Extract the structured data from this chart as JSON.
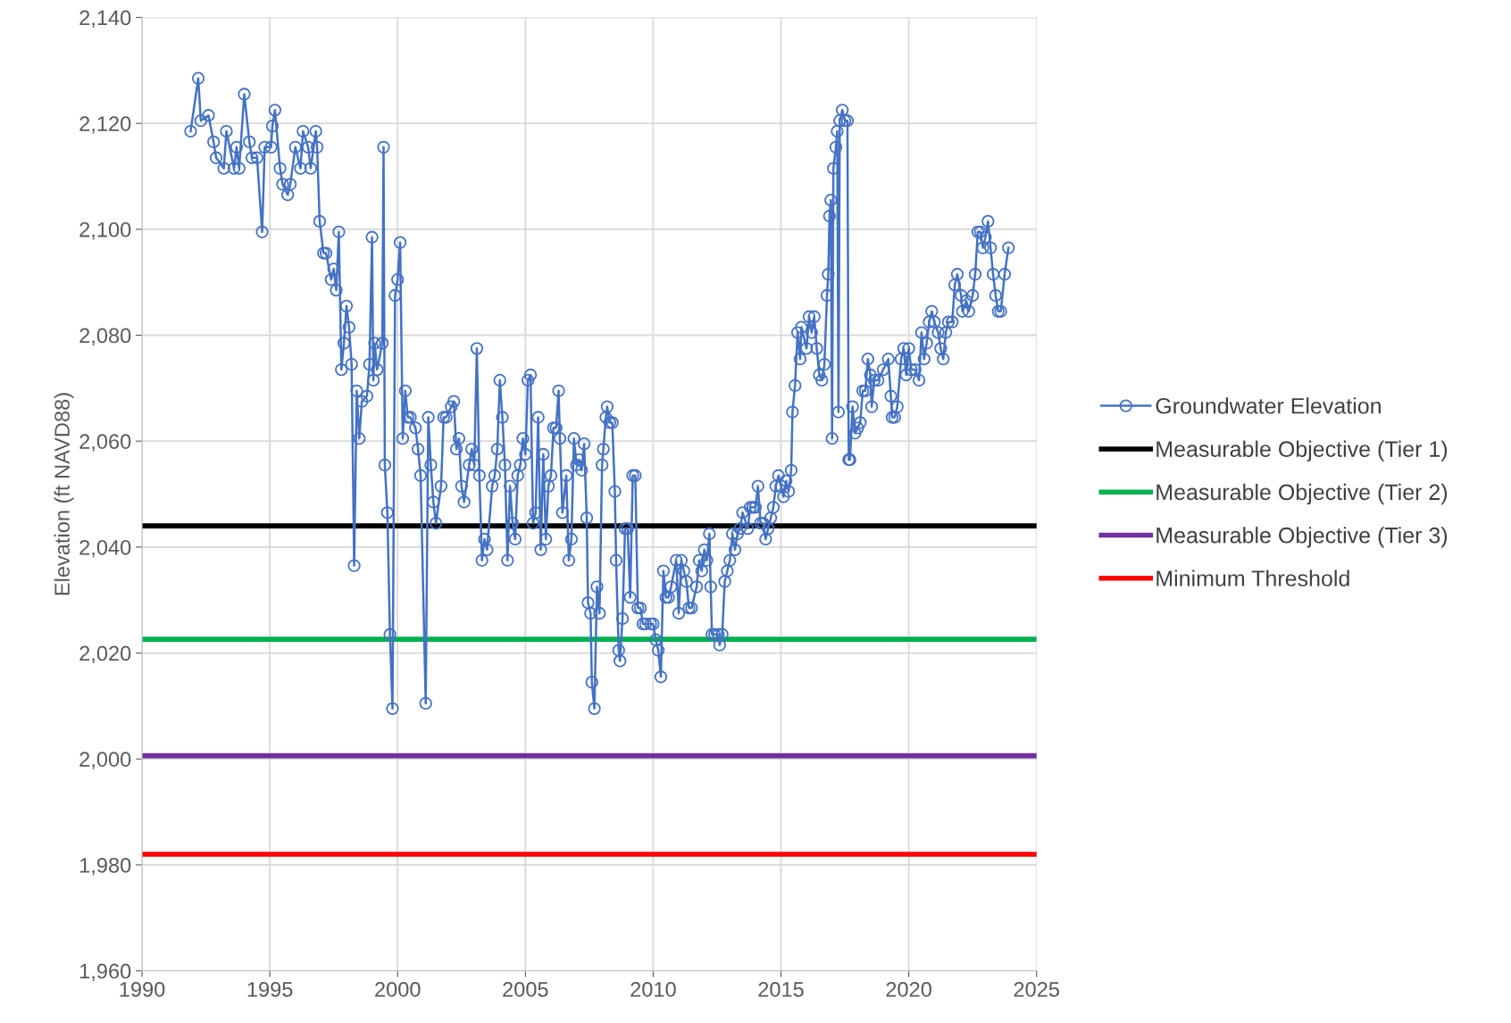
{
  "chart_data": {
    "type": "line",
    "ylabel": "Elevation (ft NAVD88)",
    "xlim": [
      1990,
      2025
    ],
    "xticks": [
      1990,
      1995,
      2000,
      2005,
      2010,
      2015,
      2020,
      2025
    ],
    "ylim": [
      1960,
      2140
    ],
    "yticks": [
      {
        "value": 1960,
        "label": "1,960"
      },
      {
        "value": 1980,
        "label": "1,980"
      },
      {
        "value": 2000,
        "label": "2,000"
      },
      {
        "value": 2020,
        "label": "2,020"
      },
      {
        "value": 2040,
        "label": "2,040"
      },
      {
        "value": 2060,
        "label": "2,060"
      },
      {
        "value": 2080,
        "label": "2,080"
      },
      {
        "value": 2100,
        "label": "2,100"
      },
      {
        "value": 2120,
        "label": "2,120"
      },
      {
        "value": 2140,
        "label": "2,140"
      }
    ],
    "grid": true,
    "legend": "right",
    "marker": "circle",
    "line_style": "solid",
    "series": [
      {
        "name": "Groundwater Elevation",
        "color": "#4472c4",
        "x": [
          1991.9,
          1992.2,
          1992.3,
          1992.6,
          1992.8,
          1992.9,
          1993.2,
          1993.3,
          1993.6,
          1993.7,
          1993.8,
          1994.0,
          1994.2,
          1994.3,
          1994.5,
          1994.7,
          1994.8,
          1995.05,
          1995.1,
          1995.2,
          1995.4,
          1995.5,
          1995.7,
          1995.8,
          1996.0,
          1996.2,
          1996.3,
          1996.5,
          1996.6,
          1996.8,
          1996.85,
          1996.95,
          1997.1,
          1997.2,
          1997.4,
          1997.5,
          1997.6,
          1997.7,
          1997.8,
          1997.9,
          1998.0,
          1998.1,
          1998.2,
          1998.3,
          1998.4,
          1998.5,
          1998.6,
          1998.8,
          1998.9,
          1999.0,
          1999.05,
          1999.1,
          1999.2,
          1999.4,
          1999.45,
          1999.5,
          1999.6,
          1999.7,
          1999.8,
          1999.9,
          2000.0,
          2000.1,
          2000.2,
          2000.3,
          2000.4,
          2000.5,
          2000.7,
          2000.8,
          2000.9,
          2001.1,
          2001.2,
          2001.3,
          2001.4,
          2001.5,
          2001.7,
          2001.8,
          2001.9,
          2002.1,
          2002.2,
          2002.3,
          2002.4,
          2002.5,
          2002.6,
          2002.8,
          2002.9,
          2003.0,
          2003.1,
          2003.2,
          2003.3,
          2003.4,
          2003.5,
          2003.7,
          2003.8,
          2003.9,
          2004.0,
          2004.1,
          2004.2,
          2004.3,
          2004.4,
          2004.5,
          2004.6,
          2004.7,
          2004.8,
          2004.9,
          2005.0,
          2005.1,
          2005.2,
          2005.3,
          2005.4,
          2005.5,
          2005.6,
          2005.7,
          2005.8,
          2005.9,
          2006.0,
          2006.1,
          2006.2,
          2006.3,
          2006.35,
          2006.45,
          2006.6,
          2006.7,
          2006.8,
          2006.9,
          2007.0,
          2007.1,
          2007.2,
          2007.3,
          2007.4,
          2007.45,
          2007.55,
          2007.6,
          2007.7,
          2007.8,
          2007.9,
          2008.0,
          2008.05,
          2008.15,
          2008.2,
          2008.3,
          2008.4,
          2008.5,
          2008.55,
          2008.65,
          2008.7,
          2008.8,
          2008.9,
          2009.0,
          2009.1,
          2009.2,
          2009.3,
          2009.4,
          2009.5,
          2009.6,
          2009.7,
          2009.9,
          2010.0,
          2010.1,
          2010.2,
          2010.3,
          2010.4,
          2010.5,
          2010.6,
          2010.7,
          2010.9,
          2011.0,
          2011.1,
          2011.2,
          2011.3,
          2011.4,
          2011.5,
          2011.7,
          2011.8,
          2011.9,
          2012.0,
          2012.1,
          2012.2,
          2012.25,
          2012.3,
          2012.4,
          2012.55,
          2012.6,
          2012.7,
          2012.8,
          2012.9,
          2013.0,
          2013.1,
          2013.2,
          2013.3,
          2013.4,
          2013.5,
          2013.7,
          2013.8,
          2013.9,
          2014.0,
          2014.1,
          2014.2,
          2014.3,
          2014.4,
          2014.5,
          2014.6,
          2014.7,
          2014.8,
          2014.9,
          2015.0,
          2015.1,
          2015.2,
          2015.3,
          2015.4,
          2015.45,
          2015.55,
          2015.65,
          2015.75,
          2015.8,
          2016.0,
          2016.1,
          2016.2,
          2016.3,
          2016.4,
          2016.5,
          2016.6,
          2016.7,
          2016.8,
          2016.85,
          2016.9,
          2016.95,
          2017.0,
          2017.05,
          2017.15,
          2017.2,
          2017.25,
          2017.3,
          2017.4,
          2017.5,
          2017.6,
          2017.65,
          2017.7,
          2017.8,
          2017.9,
          2018.0,
          2018.1,
          2018.2,
          2018.3,
          2018.4,
          2018.5,
          2018.55,
          2018.65,
          2018.8,
          2019.0,
          2019.2,
          2019.3,
          2019.35,
          2019.45,
          2019.55,
          2019.7,
          2019.8,
          2019.9,
          2020.0,
          2020.1,
          2020.25,
          2020.4,
          2020.5,
          2020.6,
          2020.7,
          2020.8,
          2020.9,
          2021.0,
          2021.15,
          2021.25,
          2021.35,
          2021.45,
          2021.55,
          2021.7,
          2021.8,
          2021.9,
          2022.05,
          2022.1,
          2022.25,
          2022.35,
          2022.5,
          2022.6,
          2022.7,
          2022.8,
          2022.9,
          2023.0,
          2023.1,
          2023.2,
          2023.3,
          2023.4,
          2023.5,
          2023.6,
          2023.75,
          2023.9
        ],
        "values": [
          2118.5,
          2128.5,
          2120.5,
          2121.5,
          2116.5,
          2113.5,
          2111.5,
          2118.5,
          2111.5,
          2115.5,
          2111.5,
          2125.5,
          2116.5,
          2113.5,
          2113.5,
          2099.5,
          2115.5,
          2115.5,
          2119.5,
          2122.5,
          2111.5,
          2108.5,
          2106.5,
          2108.5,
          2115.5,
          2111.5,
          2118.5,
          2115.5,
          2111.5,
          2118.5,
          2115.5,
          2101.5,
          2095.5,
          2095.5,
          2090.5,
          2092.5,
          2088.5,
          2099.5,
          2073.5,
          2078.5,
          2085.5,
          2081.5,
          2074.5,
          2036.5,
          2069.5,
          2060.5,
          2067.5,
          2068.5,
          2074.5,
          2098.5,
          2071.5,
          2078.5,
          2073.5,
          2078.5,
          2115.5,
          2055.5,
          2046.5,
          2023.5,
          2009.5,
          2087.5,
          2090.5,
          2097.5,
          2060.5,
          2069.5,
          2064.5,
          2064.5,
          2062.5,
          2058.5,
          2053.5,
          2010.5,
          2064.5,
          2055.5,
          2048.5,
          2044.5,
          2051.5,
          2064.5,
          2064.5,
          2066.5,
          2067.5,
          2058.5,
          2060.5,
          2051.5,
          2048.5,
          2055.5,
          2058.5,
          2055.5,
          2077.5,
          2053.5,
          2037.5,
          2041.5,
          2039.5,
          2051.5,
          2053.5,
          2058.5,
          2071.5,
          2064.5,
          2055.5,
          2037.5,
          2051.5,
          2044.5,
          2041.5,
          2053.5,
          2055.5,
          2060.5,
          2057.5,
          2071.5,
          2072.5,
          2044.5,
          2046.5,
          2064.5,
          2039.5,
          2057.5,
          2041.5,
          2051.5,
          2053.5,
          2062.5,
          2062.5,
          2069.5,
          2060.5,
          2046.5,
          2053.5,
          2037.5,
          2041.5,
          2060.5,
          2055.5,
          2056.5,
          2054.5,
          2059.5,
          2045.5,
          2029.5,
          2027.5,
          2014.5,
          2009.5,
          2032.5,
          2027.5,
          2055.5,
          2058.5,
          2064.5,
          2066.5,
          2063.5,
          2063.5,
          2050.5,
          2037.5,
          2020.5,
          2018.5,
          2026.5,
          2043.5,
          2043.5,
          2030.5,
          2053.5,
          2053.5,
          2028.5,
          2028.5,
          2025.5,
          2025.5,
          2025.5,
          2025.5,
          2022.5,
          2020.5,
          2015.5,
          2035.5,
          2030.5,
          2030.5,
          2032.5,
          2037.5,
          2027.5,
          2037.5,
          2035.5,
          2033.5,
          2028.5,
          2028.5,
          2032.5,
          2037.5,
          2035.5,
          2039.5,
          2037.5,
          2042.5,
          2032.5,
          2023.5,
          2023.5,
          2023.5,
          2021.5,
          2023.5,
          2033.5,
          2035.5,
          2037.5,
          2042.5,
          2039.5,
          2042.5,
          2043.5,
          2046.5,
          2043.5,
          2047.5,
          2047.5,
          2047.5,
          2051.5,
          2044.5,
          2044.5,
          2041.5,
          2043.5,
          2045.5,
          2047.5,
          2051.5,
          2053.5,
          2051.5,
          2049.5,
          2052.5,
          2050.5,
          2054.5,
          2065.5,
          2070.5,
          2080.5,
          2075.5,
          2081.5,
          2077.5,
          2083.5,
          2080.5,
          2083.5,
          2077.5,
          2072.5,
          2071.5,
          2074.5,
          2087.5,
          2091.5,
          2102.5,
          2105.5,
          2060.5,
          2111.5,
          2115.5,
          2118.5,
          2065.5,
          2120.5,
          2122.5,
          2120.5,
          2120.5,
          2056.5,
          2056.5,
          2066.5,
          2061.5,
          2062.5,
          2063.5,
          2069.5,
          2069.5,
          2075.5,
          2072.5,
          2066.5,
          2071.5,
          2071.5,
          2073.5,
          2075.5,
          2068.5,
          2064.5,
          2064.5,
          2066.5,
          2075.5,
          2077.5,
          2072.5,
          2077.5,
          2073.5,
          2073.5,
          2071.5,
          2080.5,
          2075.5,
          2078.5,
          2082.5,
          2084.5,
          2082.5,
          2080.5,
          2077.5,
          2075.5,
          2080.5,
          2082.5,
          2082.5,
          2089.5,
          2091.5,
          2087.5,
          2084.5,
          2086.5,
          2084.5,
          2087.5,
          2091.5,
          2099.5,
          2099.5,
          2096.5,
          2098.5,
          2101.5,
          2096.5,
          2091.5,
          2087.5,
          2084.5,
          2084.5,
          2091.5,
          2096.5
        ]
      }
    ],
    "ref_lines": [
      {
        "axis": "y",
        "value": 2044,
        "label": "Measurable Objective (Tier 1)",
        "color": "#000000"
      },
      {
        "axis": "y",
        "value": 2022.6,
        "label": "Measurable Objective (Tier 2)",
        "color": "#00b050"
      },
      {
        "axis": "y",
        "value": 2000.6,
        "label": "Measurable Objective (Tier 3)",
        "color": "#7030a0"
      },
      {
        "axis": "y",
        "value": 1982,
        "label": "Minimum Threshold",
        "color": "#ff0000"
      }
    ]
  }
}
